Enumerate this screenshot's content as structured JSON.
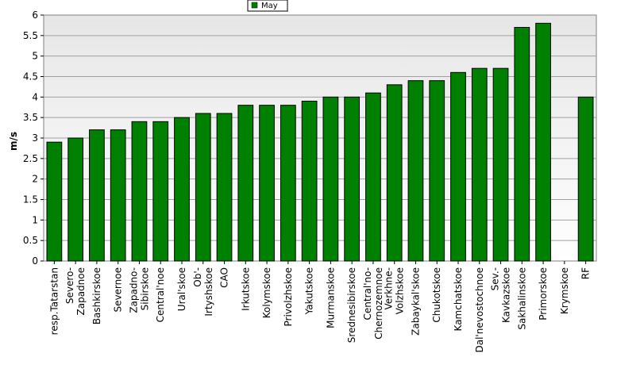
{
  "chart_data": {
    "type": "bar",
    "title": "",
    "xlabel": "",
    "ylabel": "m/s",
    "ylim": [
      0,
      6
    ],
    "yticks": [
      "0",
      "0.5",
      "1",
      "1.5",
      "2",
      "2.5",
      "3",
      "3.5",
      "4",
      "4.5",
      "5",
      "5.5",
      "6"
    ],
    "grid": true,
    "legend": {
      "placement": "top-center",
      "entries": [
        "May"
      ]
    },
    "colors": {
      "bar": "#008000",
      "bar_edge": "#000000",
      "plot_bg_top": "#e6e6e6",
      "plot_bg_bottom": "#ffffff"
    },
    "categories": [
      "resp.Tatarstan",
      "Severo-\nZapadnoe",
      "Bashkirskoe",
      "Severnoe",
      "Zapadno-\nSibirskoe",
      "Central'noe",
      "Ural'skoe",
      "Ob'-\nIrtyshskoe",
      "CAO",
      "Irkutskoe",
      "Kolymskoe",
      "Privolzhskoe",
      "Yakutskoe",
      "Murmanskoe",
      "Srednesibirskoe",
      "Central'no-\nChernozemnoe",
      "Verkhne-\nVolzhskoe",
      "Zabaykal'skoe",
      "Chukotskoe",
      "Kamchatskoe",
      "Dal'nevostochnoe",
      "Sev.-\nKavkazskoe",
      "Sakhalinskoe",
      "Primorskoe",
      "Krymskoe",
      "RF"
    ],
    "series": [
      {
        "name": "May",
        "values": [
          2.9,
          3.0,
          3.2,
          3.2,
          3.4,
          3.4,
          3.5,
          3.6,
          3.6,
          3.8,
          3.8,
          3.8,
          3.9,
          4.0,
          4.0,
          4.1,
          4.3,
          4.4,
          4.4,
          4.6,
          4.7,
          4.7,
          5.7,
          5.8,
          null,
          4.0
        ]
      }
    ]
  }
}
